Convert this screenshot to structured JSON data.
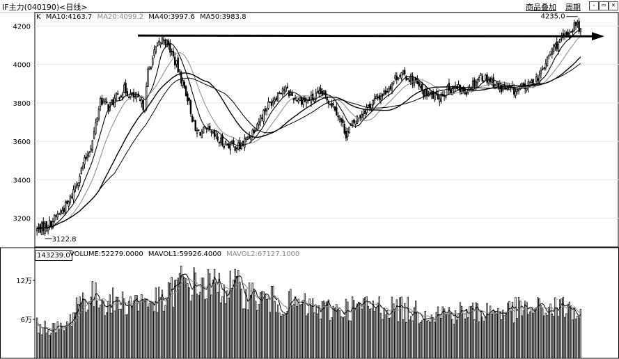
{
  "header": {
    "title": "IF主力(040190)<日线>",
    "overlay_label": "商品叠加",
    "period_label": "周期",
    "window_buttons": [
      "-",
      "▭",
      "×"
    ]
  },
  "legend": {
    "k_label": "K",
    "ma10": "MA10:4163.7",
    "ma20": "MA20:4099.2",
    "ma40": "MA40:3997.6",
    "ma50": "MA50:3983.8"
  },
  "volume_legend": {
    "current_box": "143239.0",
    "volume": "VOLUME:52279.0000",
    "mavol1": "MAVOL1:59926.4000",
    "mavol2": "MAVOL2:67127.1000"
  },
  "chart_data": [
    {
      "type": "candlestick",
      "title": "IF主力(040190)<日线>",
      "y_ticks": [
        "4200",
        "4000",
        "3800",
        "3600",
        "3400",
        "3200"
      ],
      "ylim": [
        3050,
        4270
      ],
      "annotations": {
        "high_label": "4235.0",
        "low_label": "3122.8"
      },
      "resistance_line": {
        "value": 4150
      },
      "anchors": [
        [
          0,
          3140
        ],
        [
          8,
          3170
        ],
        [
          20,
          3280
        ],
        [
          35,
          3600
        ],
        [
          40,
          3820
        ],
        [
          45,
          3780
        ],
        [
          55,
          3870
        ],
        [
          68,
          3780
        ],
        [
          70,
          3960
        ],
        [
          75,
          4080
        ],
        [
          80,
          4140
        ],
        [
          85,
          4060
        ],
        [
          90,
          3950
        ],
        [
          95,
          3830
        ],
        [
          100,
          3650
        ],
        [
          108,
          3650
        ],
        [
          115,
          3600
        ],
        [
          122,
          3580
        ],
        [
          128,
          3570
        ],
        [
          135,
          3640
        ],
        [
          145,
          3780
        ],
        [
          155,
          3880
        ],
        [
          162,
          3830
        ],
        [
          170,
          3810
        ],
        [
          180,
          3850
        ],
        [
          188,
          3780
        ],
        [
          195,
          3640
        ],
        [
          202,
          3720
        ],
        [
          210,
          3790
        ],
        [
          220,
          3860
        ],
        [
          228,
          3950
        ],
        [
          236,
          3930
        ],
        [
          244,
          3850
        ],
        [
          252,
          3830
        ],
        [
          262,
          3880
        ],
        [
          270,
          3860
        ],
        [
          280,
          3940
        ],
        [
          286,
          3920
        ],
        [
          292,
          3880
        ],
        [
          302,
          3860
        ],
        [
          310,
          3890
        ],
        [
          318,
          3950
        ],
        [
          325,
          4080
        ],
        [
          333,
          4140
        ],
        [
          340,
          4210
        ],
        [
          343,
          4180
        ]
      ],
      "colors": {
        "up": "#000000",
        "down": "#000000",
        "ma10": "#000000",
        "ma20": "#888888",
        "ma40": "#000000",
        "ma50": "#000000"
      }
    },
    {
      "type": "bar",
      "title": "VOLUME",
      "y_ticks": [
        "12万",
        "6万"
      ],
      "ylim": [
        0,
        150000
      ],
      "anchors": [
        [
          0,
          48000
        ],
        [
          15,
          44000
        ],
        [
          20,
          50000
        ],
        [
          25,
          85000
        ],
        [
          35,
          92000
        ],
        [
          50,
          83000
        ],
        [
          65,
          87000
        ],
        [
          80,
          84000
        ],
        [
          90,
          115000
        ],
        [
          100,
          110000
        ],
        [
          115,
          108000
        ],
        [
          125,
          107000
        ],
        [
          140,
          90000
        ],
        [
          160,
          82000
        ],
        [
          180,
          72000
        ],
        [
          200,
          76000
        ],
        [
          220,
          78000
        ],
        [
          240,
          70000
        ],
        [
          260,
          68000
        ],
        [
          280,
          70000
        ],
        [
          300,
          72000
        ],
        [
          320,
          74000
        ],
        [
          335,
          76000
        ],
        [
          343,
          62000
        ]
      ]
    }
  ]
}
